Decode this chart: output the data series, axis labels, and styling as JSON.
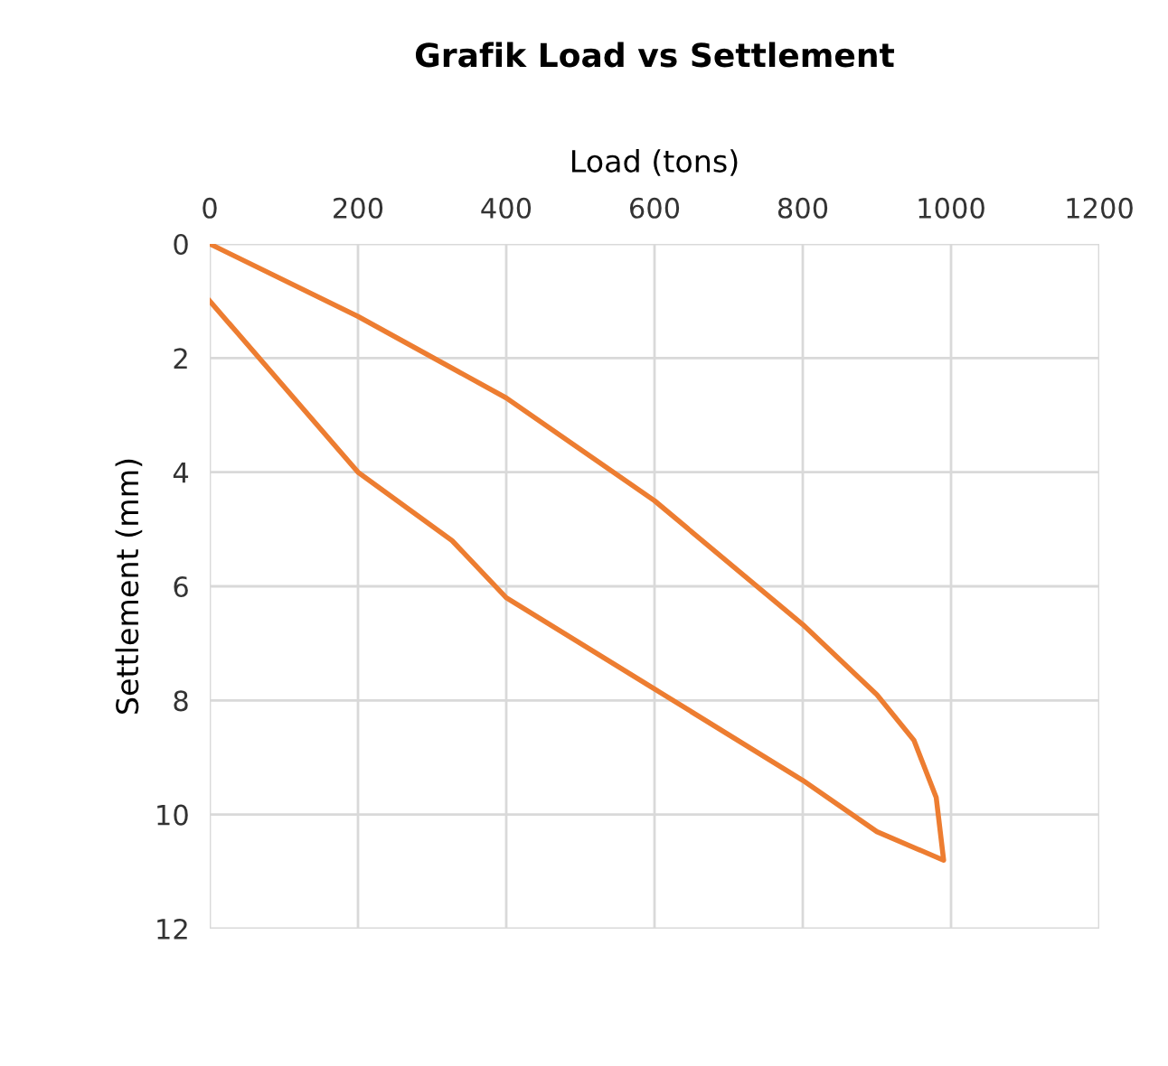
{
  "chart_data": {
    "type": "line",
    "title": "Grafik Load vs Settlement",
    "xlabel": "Load (tons)",
    "ylabel": "Settlement (mm)",
    "series": [
      {
        "color": "#ed7d31",
        "x": [
          0,
          200,
          400,
          600,
          800,
          900,
          950,
          980,
          990,
          900,
          800,
          600,
          400,
          327,
          200,
          0
        ],
        "values": [
          0,
          1.27,
          2.7,
          4.5,
          6.67,
          7.9,
          8.7,
          9.7,
          10.8,
          10.3,
          9.4,
          7.8,
          6.2,
          5.2,
          4.0,
          1.0
        ]
      }
    ],
    "xlim": [
      0,
      1200
    ],
    "xticks": [
      0,
      200,
      400,
      600,
      800,
      1000,
      1200
    ],
    "ylim": [
      12,
      0
    ],
    "yticks": [
      0,
      2,
      4,
      6,
      8,
      10,
      12
    ],
    "grid": true,
    "marker": "none",
    "line_style": "solid",
    "legend": false
  }
}
